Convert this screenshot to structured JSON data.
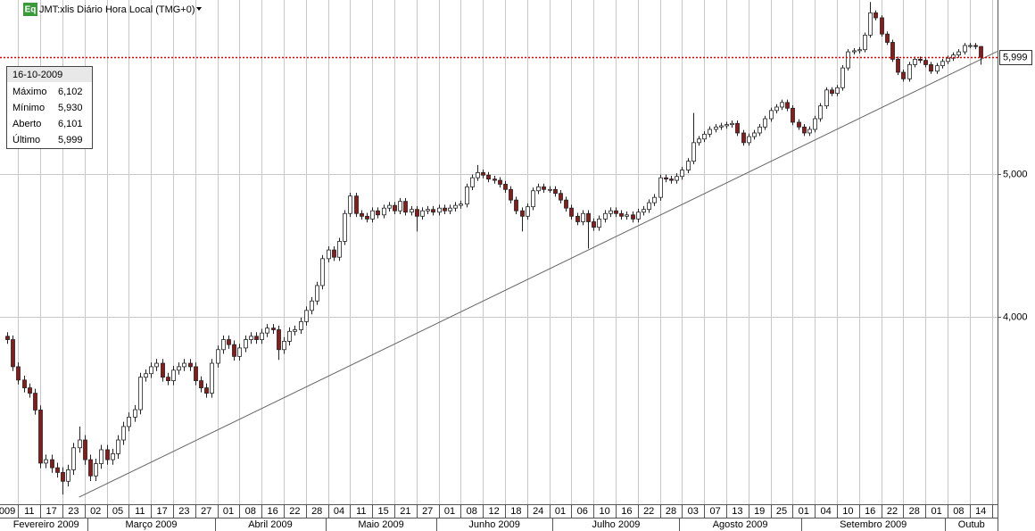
{
  "chart_data": {
    "type": "candlestick",
    "icon_label": "Eq",
    "title": "JMT:xlis Diário Hora Local (TMG+0)",
    "log_scale": true,
    "grid": true,
    "up_color": "#ffffff",
    "down_color": "#8b1a1a",
    "ylim": [
      2985,
      6560
    ],
    "yticks": [
      {
        "value": 4000,
        "label": "4,000"
      },
      {
        "value": 5000,
        "label": "5,000"
      }
    ],
    "last_price": {
      "value": 5999,
      "label": "5,999",
      "color": "#e00000"
    },
    "trendline": {
      "x": [
        13,
        179
      ],
      "values": [
        3018,
        6054
      ],
      "color": "#666666"
    },
    "info_box": {
      "date": "16-10-2009",
      "rows": [
        {
          "label": "Máximo",
          "value": "6,102"
        },
        {
          "label": "Mínimo",
          "value": "5,930"
        },
        {
          "label": "Aberto",
          "value": "6,101"
        },
        {
          "label": "Último",
          "value": "5,999"
        }
      ]
    },
    "categories": [
      "009",
      null,
      null,
      null,
      "11",
      null,
      null,
      null,
      "17",
      null,
      null,
      null,
      "23",
      null,
      null,
      null,
      "02",
      null,
      null,
      null,
      "05",
      null,
      null,
      null,
      "11",
      null,
      null,
      null,
      "17",
      null,
      null,
      null,
      "23",
      null,
      null,
      null,
      "27",
      null,
      null,
      null,
      "01",
      null,
      null,
      null,
      "08",
      null,
      null,
      null,
      "16",
      null,
      null,
      null,
      "22",
      null,
      null,
      null,
      "28",
      null,
      null,
      null,
      "04",
      null,
      null,
      null,
      "11",
      null,
      null,
      null,
      "15",
      null,
      null,
      null,
      "21",
      null,
      null,
      null,
      "27",
      null,
      null,
      null,
      "01",
      null,
      null,
      null,
      "08",
      null,
      null,
      null,
      "12",
      null,
      null,
      null,
      "18",
      null,
      null,
      null,
      "24",
      null,
      null,
      null,
      "01",
      null,
      null,
      null,
      "06",
      null,
      null,
      null,
      "10",
      null,
      null,
      null,
      "16",
      null,
      null,
      null,
      "22",
      null,
      null,
      null,
      "28",
      null,
      null,
      null,
      "03",
      null,
      null,
      null,
      "07",
      null,
      null,
      null,
      "13",
      null,
      null,
      null,
      "19",
      null,
      null,
      null,
      "25",
      null,
      null,
      null,
      "01",
      null,
      null,
      null,
      "04",
      null,
      null,
      null,
      "10",
      null,
      null,
      null,
      "16",
      null,
      null,
      null,
      "22",
      null,
      null,
      null,
      "28",
      null,
      null,
      null,
      "01",
      null,
      null,
      null,
      "08",
      null,
      null,
      null,
      "14"
    ],
    "month_labels": [
      "Fevereiro 2009",
      null,
      null,
      null,
      null,
      null,
      null,
      null,
      null,
      null,
      null,
      null,
      null,
      null,
      null,
      "Março 2009",
      null,
      null,
      null,
      null,
      null,
      null,
      null,
      null,
      null,
      null,
      null,
      null,
      null,
      null,
      null,
      null,
      null,
      null,
      null,
      null,
      null,
      null,
      "Abril 2009",
      null,
      null,
      null,
      null,
      null,
      null,
      null,
      null,
      null,
      null,
      null,
      null,
      null,
      null,
      null,
      null,
      null,
      null,
      null,
      "Maio 2009",
      null,
      null,
      null,
      null,
      null,
      null,
      null,
      null,
      null,
      null,
      null,
      null,
      null,
      null,
      null,
      null,
      null,
      null,
      null,
      "Junho 2009",
      null,
      null,
      null,
      null,
      null,
      null,
      null,
      null,
      null,
      null,
      null,
      null,
      null,
      null,
      null,
      null,
      null,
      null,
      null,
      null,
      "Julho 2009",
      null,
      null,
      null,
      null,
      null,
      null,
      null,
      null,
      null,
      null,
      null,
      null,
      null,
      null,
      null,
      null,
      null,
      null,
      null,
      null,
      null,
      null,
      "Agosto 2009",
      null,
      null,
      null,
      null,
      null,
      null,
      null,
      null,
      null,
      null,
      null,
      null,
      null,
      null,
      null,
      null,
      null,
      null,
      null,
      null,
      null,
      "Setembro 2009",
      null,
      null,
      null,
      null,
      null,
      null,
      null,
      null,
      null,
      null,
      null,
      null,
      null,
      null,
      null,
      null,
      null,
      null,
      null,
      null,
      null,
      null,
      null,
      null,
      null,
      "Outub",
      null,
      null,
      null,
      null,
      null,
      null
    ],
    "open": [
      3880,
      3860,
      3700,
      3624,
      3580,
      3550,
      3458,
      3183,
      3200,
      3160,
      3137,
      3094,
      3150,
      3260,
      3300,
      3200,
      3120,
      3180,
      3250,
      3200,
      3230,
      3300,
      3370,
      3420,
      3460,
      3640,
      3660,
      3700,
      3720,
      3640,
      3620,
      3680,
      3700,
      3720,
      3700,
      3620,
      3580,
      3550,
      3720,
      3800,
      3860,
      3830,
      3760,
      3810,
      3860,
      3880,
      3860,
      3900,
      3930,
      3920,
      3800,
      3850,
      3910,
      3920,
      3970,
      4040,
      4100,
      4200,
      4380,
      4440,
      4390,
      4500,
      4700,
      4830,
      4700,
      4680,
      4660,
      4720,
      4690,
      4740,
      4760,
      4720,
      4790,
      4710,
      4730,
      4680,
      4720,
      4730,
      4710,
      4740,
      4720,
      4740,
      4760,
      4770,
      4900,
      4970,
      5010,
      4990,
      4960,
      4950,
      4920,
      4880,
      4800,
      4720,
      4680,
      4750,
      4870,
      4900,
      4880,
      4880,
      4850,
      4800,
      4740,
      4680,
      4640,
      4700,
      4640,
      4600,
      4660,
      4700,
      4720,
      4700,
      4680,
      4690,
      4660,
      4710,
      4730,
      4780,
      4820,
      4970,
      4960,
      4950,
      4980,
      5030,
      5100,
      5250,
      5280,
      5320,
      5360,
      5380,
      5390,
      5400,
      5410,
      5330,
      5250,
      5300,
      5330,
      5380,
      5450,
      5520,
      5550,
      5590,
      5540,
      5420,
      5380,
      5330,
      5360,
      5450,
      5560,
      5700,
      5670,
      5720,
      5900,
      6050,
      6060,
      6070,
      6210,
      6430,
      6380,
      6220,
      6140,
      5980,
      5860,
      5800,
      5930,
      5980,
      5970,
      5930,
      5870,
      5920,
      5960,
      5990,
      6020,
      6050,
      6110,
      6110,
      6101
    ],
    "high": [
      3905,
      3885,
      3725,
      3649,
      3605,
      3575,
      3483,
      3225,
      3225,
      3185,
      3162,
      3175,
      3285,
      3370,
      3325,
      3225,
      3205,
      3275,
      3275,
      3255,
      3325,
      3395,
      3445,
      3485,
      3665,
      3685,
      3725,
      3745,
      3745,
      3665,
      3705,
      3725,
      3745,
      3745,
      3725,
      3645,
      3605,
      3745,
      3825,
      3885,
      3885,
      3855,
      3835,
      3885,
      3905,
      3905,
      3925,
      3955,
      3955,
      3945,
      3875,
      3935,
      3945,
      3995,
      4065,
      4125,
      4225,
      4405,
      4465,
      4465,
      4525,
      4725,
      4855,
      4855,
      4725,
      4705,
      4745,
      4745,
      4765,
      4785,
      4785,
      4815,
      4815,
      4755,
      4755,
      4745,
      4755,
      4755,
      4765,
      4765,
      4765,
      4785,
      4795,
      4925,
      4995,
      5070,
      5035,
      5015,
      4985,
      4975,
      4945,
      4905,
      4825,
      4745,
      4775,
      4895,
      4925,
      4925,
      4905,
      4905,
      4875,
      4825,
      4765,
      4705,
      4725,
      4725,
      4665,
      4685,
      4725,
      4745,
      4745,
      4725,
      4715,
      4715,
      4735,
      4755,
      4805,
      4845,
      4995,
      4995,
      4985,
      5005,
      5055,
      5125,
      5500,
      5305,
      5345,
      5385,
      5405,
      5415,
      5425,
      5435,
      5435,
      5355,
      5325,
      5355,
      5405,
      5475,
      5545,
      5575,
      5615,
      5615,
      5565,
      5445,
      5405,
      5385,
      5475,
      5585,
      5725,
      5725,
      5745,
      5925,
      6075,
      6085,
      6095,
      6235,
      6540,
      6455,
      6405,
      6245,
      6165,
      6005,
      5885,
      5955,
      6005,
      6005,
      5995,
      5955,
      5945,
      5985,
      6015,
      6045,
      6075,
      6135,
      6135,
      6135,
      6102
    ],
    "low": [
      3835,
      3675,
      3599,
      3555,
      3525,
      3433,
      3158,
      3158,
      3135,
      3112,
      3030,
      3069,
      3125,
      3235,
      3175,
      3095,
      3095,
      3155,
      3175,
      3175,
      3205,
      3275,
      3345,
      3395,
      3435,
      3615,
      3635,
      3675,
      3615,
      3595,
      3595,
      3655,
      3675,
      3675,
      3595,
      3555,
      3525,
      3525,
      3695,
      3775,
      3805,
      3735,
      3735,
      3785,
      3835,
      3835,
      3835,
      3875,
      3895,
      3740,
      3775,
      3825,
      3885,
      3895,
      3945,
      4015,
      4075,
      4175,
      4355,
      4365,
      4365,
      4475,
      4675,
      4675,
      4655,
      4635,
      4635,
      4665,
      4665,
      4715,
      4695,
      4695,
      4685,
      4685,
      4570,
      4655,
      4695,
      4685,
      4685,
      4695,
      4695,
      4715,
      4735,
      4745,
      4875,
      4945,
      4965,
      4935,
      4925,
      4895,
      4855,
      4775,
      4695,
      4570,
      4655,
      4725,
      4845,
      4855,
      4855,
      4825,
      4775,
      4715,
      4655,
      4615,
      4615,
      4450,
      4575,
      4575,
      4635,
      4675,
      4675,
      4655,
      4655,
      4635,
      4635,
      4685,
      4705,
      4755,
      4795,
      4935,
      4925,
      4925,
      4955,
      5005,
      5075,
      5225,
      5255,
      5295,
      5335,
      5355,
      5365,
      5375,
      5305,
      5225,
      5225,
      5275,
      5305,
      5355,
      5425,
      5495,
      5525,
      5515,
      5395,
      5355,
      5305,
      5305,
      5335,
      5425,
      5535,
      5645,
      5645,
      5695,
      5875,
      6025,
      6035,
      6045,
      6185,
      6355,
      6195,
      6115,
      5955,
      5835,
      5775,
      5775,
      5905,
      5945,
      5905,
      5845,
      5845,
      5895,
      5935,
      5965,
      5995,
      6025,
      6085,
      6075,
      5930
    ],
    "close": [
      3860,
      3700,
      3624,
      3580,
      3550,
      3458,
      3183,
      3200,
      3160,
      3137,
      3094,
      3150,
      3260,
      3300,
      3200,
      3120,
      3180,
      3250,
      3200,
      3230,
      3300,
      3370,
      3420,
      3460,
      3640,
      3660,
      3700,
      3720,
      3640,
      3620,
      3680,
      3700,
      3720,
      3700,
      3620,
      3580,
      3550,
      3720,
      3800,
      3860,
      3830,
      3760,
      3810,
      3860,
      3880,
      3860,
      3900,
      3930,
      3920,
      3800,
      3850,
      3910,
      3920,
      3970,
      4040,
      4100,
      4200,
      4380,
      4440,
      4390,
      4500,
      4700,
      4830,
      4700,
      4680,
      4660,
      4720,
      4690,
      4740,
      4760,
      4720,
      4790,
      4710,
      4730,
      4680,
      4720,
      4730,
      4710,
      4740,
      4720,
      4740,
      4760,
      4770,
      4900,
      4970,
      5010,
      4990,
      4960,
      4950,
      4920,
      4880,
      4800,
      4720,
      4680,
      4750,
      4870,
      4900,
      4880,
      4880,
      4850,
      4800,
      4740,
      4680,
      4640,
      4700,
      4640,
      4600,
      4660,
      4700,
      4720,
      4700,
      4680,
      4690,
      4660,
      4710,
      4730,
      4780,
      4820,
      4970,
      4960,
      4950,
      4980,
      5030,
      5100,
      5250,
      5280,
      5320,
      5360,
      5380,
      5390,
      5400,
      5410,
      5330,
      5250,
      5300,
      5330,
      5380,
      5450,
      5520,
      5550,
      5590,
      5540,
      5420,
      5380,
      5330,
      5360,
      5450,
      5560,
      5700,
      5670,
      5720,
      5900,
      6050,
      6060,
      6070,
      6210,
      6430,
      6380,
      6220,
      6140,
      5980,
      5860,
      5800,
      5930,
      5980,
      5970,
      5930,
      5870,
      5920,
      5960,
      5990,
      6020,
      6050,
      6110,
      6110,
      6100,
      5999
    ]
  }
}
